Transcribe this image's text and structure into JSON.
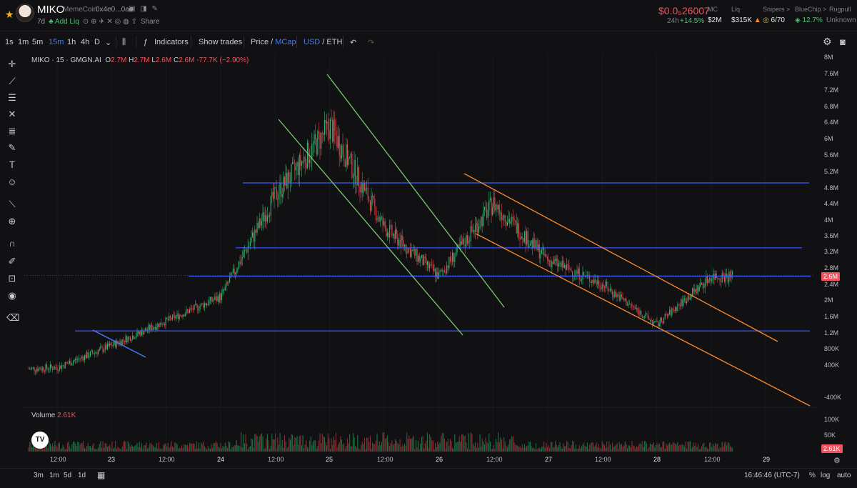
{
  "header": {
    "token_name": "MIKO",
    "token_tag": "MemeCoin",
    "address": "0x4e0...0ac",
    "age": "7d",
    "add_liq": "Add Liq",
    "share": "Share",
    "price": "$0.0₅26007",
    "change_label": "24h",
    "change_value": "+14.5%",
    "stats": [
      {
        "label": "MC",
        "value": "$2M"
      },
      {
        "label": "Liq",
        "value": "$315K"
      },
      {
        "label": "Snipers >",
        "value": "6/70"
      },
      {
        "label": "BlueChip >",
        "value": "12.7%"
      },
      {
        "label": "Rugpull",
        "value": "Unknown"
      }
    ],
    "colors": {
      "up": "#4fc27a",
      "down": "#f2525d",
      "accent": "#3f7bff"
    }
  },
  "toolbar": {
    "intervals": [
      "1s",
      "1m",
      "5m",
      "15m",
      "1h",
      "4h",
      "D"
    ],
    "active_interval": "15m",
    "indicators": "Indicators",
    "show_trades": "Show trades",
    "price_label": "Price",
    "mcap_label": "MCap",
    "usd_label": "USD",
    "eth_label": "ETH"
  },
  "chart": {
    "legend_symbol": "MIKO · 15 · GMGN.AI",
    "o": "2.7M",
    "h": "2.7M",
    "l": "2.6M",
    "c": "2.6M",
    "change": "-77.7K (−2.90%)",
    "current_tag": "2.6M",
    "volume_label": "Volume",
    "volume_value": "2.61K",
    "volume_tag": "2.61K",
    "y_labels": [
      "8M",
      "7.6M",
      "7.2M",
      "6.8M",
      "6.4M",
      "6M",
      "5.6M",
      "5.2M",
      "4.8M",
      "4.4M",
      "4M",
      "3.6M",
      "3.2M",
      "2.8M",
      "2.4M",
      "2M",
      "1.6M",
      "1.2M",
      "800K",
      "400K",
      "-400K"
    ],
    "vol_y_labels": [
      "100K",
      "50K"
    ],
    "x_labels": [
      {
        "t": "12:00",
        "bold": false
      },
      {
        "t": "23",
        "bold": true
      },
      {
        "t": "12:00",
        "bold": false
      },
      {
        "t": "24",
        "bold": true
      },
      {
        "t": "12:00",
        "bold": false
      },
      {
        "t": "25",
        "bold": true
      },
      {
        "t": "12:00",
        "bold": false
      },
      {
        "t": "26",
        "bold": true
      },
      {
        "t": "12:00",
        "bold": false
      },
      {
        "t": "27",
        "bold": true
      },
      {
        "t": "12:00",
        "bold": false
      },
      {
        "t": "28",
        "bold": true
      },
      {
        "t": "12:00",
        "bold": false
      },
      {
        "t": "29",
        "bold": true
      }
    ]
  },
  "chart_data": {
    "type": "candlestick",
    "y_unit": "market cap (USD)",
    "ylim": [
      -600000,
      8100000
    ],
    "x": [
      "22 12:00",
      "23 00:00",
      "23 12:00",
      "24 00:00",
      "24 12:00",
      "25 00:00",
      "25 12:00",
      "26 00:00",
      "26 12:00",
      "27 00:00",
      "27 12:00",
      "28 00:00",
      "28 12:00"
    ],
    "close_trend": [
      350000,
      900000,
      1500000,
      2100000,
      4600000,
      6300000,
      3800000,
      2600000,
      4400000,
      3000000,
      2400000,
      1400000,
      2600000
    ],
    "horizontal_levels": [
      4900000,
      3300000,
      2600000,
      1250000
    ],
    "trend_lines": [
      {
        "color": "#4a7cff",
        "from": [
          "23 22:00",
          1250000
        ],
        "to": [
          "23 12:00",
          700000
        ]
      },
      {
        "color": "#7bc96f",
        "from": [
          "24 10:00",
          6500000
        ],
        "to": [
          "26 06:00",
          1150000
        ]
      },
      {
        "color": "#7bc96f",
        "from": [
          "25 00:00",
          7700000
        ],
        "to": [
          "26 18:00",
          1800000
        ]
      },
      {
        "color": "#ff8a2a",
        "from": [
          "26 07:00",
          5200000
        ],
        "to": [
          "29 00:00",
          1000000
        ]
      },
      {
        "color": "#ff8a2a",
        "from": [
          "26 08:00",
          3800000
        ],
        "to": [
          "29 03:00",
          -550000
        ]
      }
    ]
  },
  "footer": {
    "ranges": [
      "3m",
      "1m",
      "5d",
      "1d"
    ],
    "time": "16:46:46 (UTC-7)",
    "percent": "%",
    "log": "log",
    "auto": "auto"
  }
}
